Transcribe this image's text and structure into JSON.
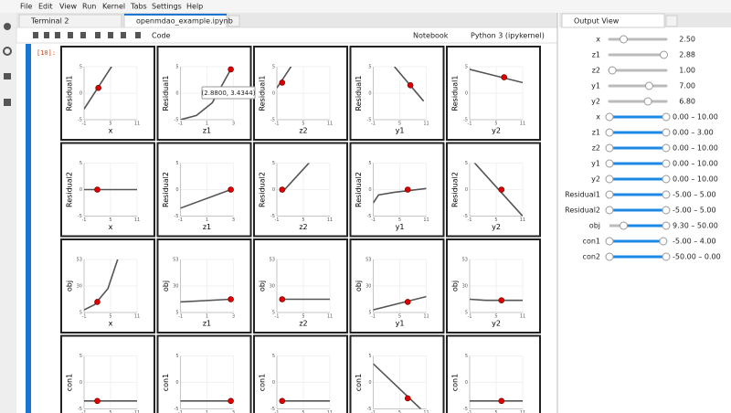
{
  "menu": [
    "File",
    "Edit",
    "View",
    "Run",
    "Kernel",
    "Tabs",
    "Settings",
    "Help"
  ],
  "tabs": {
    "left": [
      "Terminal 2",
      "openmdao_example.ipynb"
    ],
    "right": "Output View"
  },
  "toolbar": {
    "cell_type": "Code",
    "mode": "Notebook",
    "kernel": "Python 3 (ipykernel)"
  },
  "cell": {
    "prompt": "[10]:"
  },
  "plots": {
    "columns": [
      {
        "label": "x",
        "ticks": [
          "-1",
          "5",
          "11"
        ]
      },
      {
        "label": "z1",
        "ticks": [
          "-1",
          "1",
          "3"
        ]
      },
      {
        "label": "z2",
        "ticks": [
          "-1",
          "5",
          "11"
        ]
      },
      {
        "label": "y1",
        "ticks": [
          "-1",
          "5",
          "11"
        ]
      },
      {
        "label": "y2",
        "ticks": [
          "-1",
          "5",
          "11"
        ]
      }
    ],
    "rows": [
      {
        "label": "Residual1",
        "ticks": [
          "5",
          "0",
          "-5"
        ]
      },
      {
        "label": "Residual2",
        "ticks": [
          "5",
          "0",
          "-5"
        ]
      },
      {
        "label": "obj",
        "ticks": [
          "53",
          "30",
          "5"
        ]
      },
      {
        "label": "con1",
        "ticks": [
          "5",
          "0",
          "-5"
        ]
      }
    ],
    "tooltip": "(2.8800, 3.4344)"
  },
  "output_view": {
    "sliders": [
      {
        "label": "x",
        "value": "2.50"
      },
      {
        "label": "z1",
        "value": "2.88"
      },
      {
        "label": "z2",
        "value": "1.00"
      },
      {
        "label": "y1",
        "value": "7.00"
      },
      {
        "label": "y2",
        "value": "6.80"
      }
    ],
    "ranges": [
      {
        "label": "x",
        "value": "0.00 – 10.00"
      },
      {
        "label": "z1",
        "value": "0.00 – 3.00"
      },
      {
        "label": "z2",
        "value": "0.00 – 10.00"
      },
      {
        "label": "y1",
        "value": "0.00 – 10.00"
      },
      {
        "label": "y2",
        "value": "0.00 – 10.00"
      },
      {
        "label": "Residual1",
        "value": "-5.00 – 5.00"
      },
      {
        "label": "Residual2",
        "value": "-5.00 – 5.00"
      },
      {
        "label": "obj",
        "value": "9.30 – 50.00"
      },
      {
        "label": "con1",
        "value": "-5.00 – 4.00"
      },
      {
        "label": "con2",
        "value": "-50.00 – 0.00"
      }
    ]
  }
}
